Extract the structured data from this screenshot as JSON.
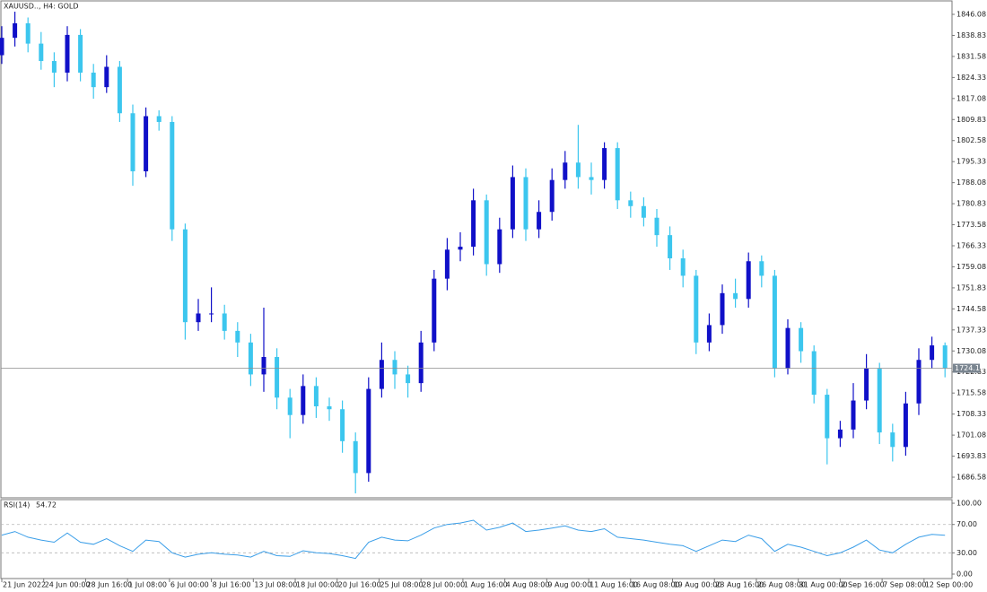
{
  "chart_data": [
    {
      "type": "candlestick",
      "title": "XAUUSD.., H4:  GOLD",
      "up_color": "#1010c8",
      "down_color": "#3cc6ee",
      "last_price": 1724.13,
      "x": [
        0,
        5,
        10,
        15,
        20,
        25,
        30,
        35,
        40,
        45,
        50,
        55,
        60,
        65,
        70,
        75,
        80,
        85,
        90,
        95,
        100,
        105,
        110,
        115,
        120,
        125,
        130,
        135,
        140,
        145,
        150,
        155,
        160,
        165,
        170,
        175,
        180,
        185,
        190,
        195,
        200,
        205,
        210,
        215,
        220,
        225,
        230,
        235,
        240,
        245,
        250,
        255,
        260,
        265,
        270,
        275,
        280,
        285,
        290,
        295,
        300,
        305,
        310,
        315,
        320,
        325,
        330,
        335,
        340,
        345,
        350,
        355,
        360
      ],
      "open": [
        1832,
        1838,
        1843,
        1836,
        1830,
        1826,
        1839,
        1826,
        1821,
        1828,
        1812,
        1792,
        1811,
        1809,
        1772,
        1740,
        1743,
        1743,
        1737,
        1733,
        1722,
        1728,
        1714,
        1708,
        1718,
        1711,
        1710,
        1699,
        1688,
        1717,
        1727,
        1722,
        1719,
        1733,
        1755,
        1765,
        1766,
        1782,
        1760,
        1772,
        1790,
        1772,
        1778,
        1789,
        1795,
        1790,
        1789,
        1800,
        1782,
        1780,
        1776,
        1770,
        1762,
        1756,
        1733,
        1739,
        1750,
        1748,
        1761,
        1756,
        1724,
        1738,
        1730,
        1715,
        1700,
        1703,
        1713,
        1724,
        1702,
        1697,
        1712,
        1727,
        1732
      ],
      "high": [
        1842,
        1847,
        1845,
        1840,
        1833,
        1842,
        1841,
        1829,
        1832,
        1830,
        1815,
        1814,
        1813,
        1811,
        1774,
        1748,
        1752,
        1746,
        1740,
        1736,
        1745,
        1731,
        1717,
        1722,
        1721,
        1714,
        1713,
        1702,
        1721,
        1733,
        1730,
        1725,
        1737,
        1758,
        1769,
        1771,
        1786,
        1784,
        1776,
        1794,
        1793,
        1782,
        1793,
        1799,
        1808,
        1795,
        1802,
        1802,
        1785,
        1783,
        1779,
        1773,
        1765,
        1758,
        1743,
        1753,
        1755,
        1764,
        1763,
        1758,
        1741,
        1740,
        1732,
        1717,
        1706,
        1719,
        1729,
        1726,
        1705,
        1716,
        1731,
        1735,
        1733
      ],
      "low": [
        1829,
        1835,
        1833,
        1827,
        1821,
        1823,
        1823,
        1817,
        1819,
        1809,
        1787,
        1790,
        1806,
        1768,
        1734,
        1737,
        1740,
        1734,
        1728,
        1718,
        1716,
        1710,
        1700,
        1705,
        1707,
        1706,
        1695,
        1681,
        1685,
        1714,
        1717,
        1714,
        1716,
        1730,
        1751,
        1761,
        1763,
        1756,
        1757,
        1769,
        1768,
        1769,
        1775,
        1786,
        1786,
        1784,
        1786,
        1779,
        1776,
        1773,
        1766,
        1758,
        1752,
        1729,
        1730,
        1736,
        1745,
        1745,
        1752,
        1721,
        1722,
        1726,
        1712,
        1691,
        1697,
        1700,
        1710,
        1698,
        1692,
        1694,
        1708,
        1724,
        1721
      ],
      "close": [
        1838,
        1843,
        1836,
        1830,
        1826,
        1839,
        1826,
        1821,
        1828,
        1812,
        1792,
        1811,
        1809,
        1772,
        1740,
        1743,
        1743,
        1737,
        1733,
        1722,
        1728,
        1714,
        1708,
        1718,
        1711,
        1710,
        1699,
        1688,
        1717,
        1727,
        1722,
        1719,
        1733,
        1755,
        1765,
        1766,
        1782,
        1760,
        1772,
        1790,
        1772,
        1778,
        1789,
        1795,
        1790,
        1789,
        1800,
        1782,
        1780,
        1776,
        1770,
        1762,
        1756,
        1733,
        1739,
        1750,
        1748,
        1761,
        1756,
        1724,
        1738,
        1730,
        1715,
        1700,
        1703,
        1713,
        1724,
        1702,
        1697,
        1712,
        1727,
        1732,
        1724.13
      ],
      "xlim": [
        -0.34,
        362.67
      ],
      "xticks": [
        {
          "value": 0,
          "label": "21 Jun 2022"
        },
        {
          "value": 16,
          "label": "24 Jun 00:00"
        },
        {
          "value": 32,
          "label": "28 Jun 16:00"
        },
        {
          "value": 48,
          "label": "1 Jul 08:00"
        },
        {
          "value": 64,
          "label": "6 Jul 00:00"
        },
        {
          "value": 80,
          "label": "8 Jul 16:00"
        },
        {
          "value": 96,
          "label": "13 Jul 08:00"
        },
        {
          "value": 112,
          "label": "18 Jul 00:00"
        },
        {
          "value": 128,
          "label": "20 Jul 16:00"
        },
        {
          "value": 144,
          "label": "25 Jul 08:00"
        },
        {
          "value": 160,
          "label": "28 Jul 00:00"
        },
        {
          "value": 176,
          "label": "1 Aug 16:00"
        },
        {
          "value": 192,
          "label": "4 Aug 08:00"
        },
        {
          "value": 208,
          "label": "9 Aug 00:00"
        },
        {
          "value": 224,
          "label": "11 Aug 16:00"
        },
        {
          "value": 240,
          "label": "16 Aug 08:00"
        },
        {
          "value": 256,
          "label": "19 Aug 00:00"
        },
        {
          "value": 272,
          "label": "23 Aug 16:00"
        },
        {
          "value": 288,
          "label": "26 Aug 08:00"
        },
        {
          "value": 304,
          "label": "31 Aug 00:00"
        },
        {
          "value": 320,
          "label": "2 Sep 16:00"
        },
        {
          "value": 336,
          "label": "7 Sep 08:00"
        },
        {
          "value": 352,
          "label": "12 Sep 00:00"
        }
      ],
      "ylim": [
        1679.47,
        1850.72
      ],
      "yticks": [
        1846.08,
        1838.83,
        1831.58,
        1824.33,
        1817.08,
        1809.83,
        1802.58,
        1795.33,
        1788.08,
        1780.83,
        1773.58,
        1766.33,
        1759.08,
        1751.83,
        1744.58,
        1737.33,
        1730.08,
        1722.83,
        1715.58,
        1708.33,
        1701.08,
        1693.83,
        1686.58
      ]
    },
    {
      "type": "line",
      "title": "RSI(14)",
      "color": "#3a9ee8",
      "values": [
        55,
        60,
        52,
        48,
        45,
        58,
        45,
        42,
        50,
        40,
        32,
        48,
        46,
        30,
        24,
        28,
        30,
        28,
        27,
        24,
        32,
        26,
        25,
        33,
        30,
        29,
        26,
        22,
        45,
        52,
        48,
        47,
        55,
        65,
        70,
        72,
        76,
        62,
        66,
        72,
        60,
        62,
        65,
        68,
        62,
        60,
        64,
        52,
        50,
        48,
        45,
        42,
        40,
        32,
        40,
        48,
        46,
        55,
        50,
        32,
        42,
        38,
        32,
        26,
        30,
        38,
        48,
        34,
        30,
        42,
        52,
        56,
        54.72
      ],
      "ylim": [
        -6.3,
        105.1
      ],
      "yticks": [
        {
          "value": 100,
          "label": "100.00"
        },
        {
          "value": 70,
          "label": "70.00"
        },
        {
          "value": 30,
          "label": "30.00"
        },
        {
          "value": 0,
          "label": "0.00"
        }
      ],
      "levels": [
        70,
        30
      ]
    }
  ]
}
